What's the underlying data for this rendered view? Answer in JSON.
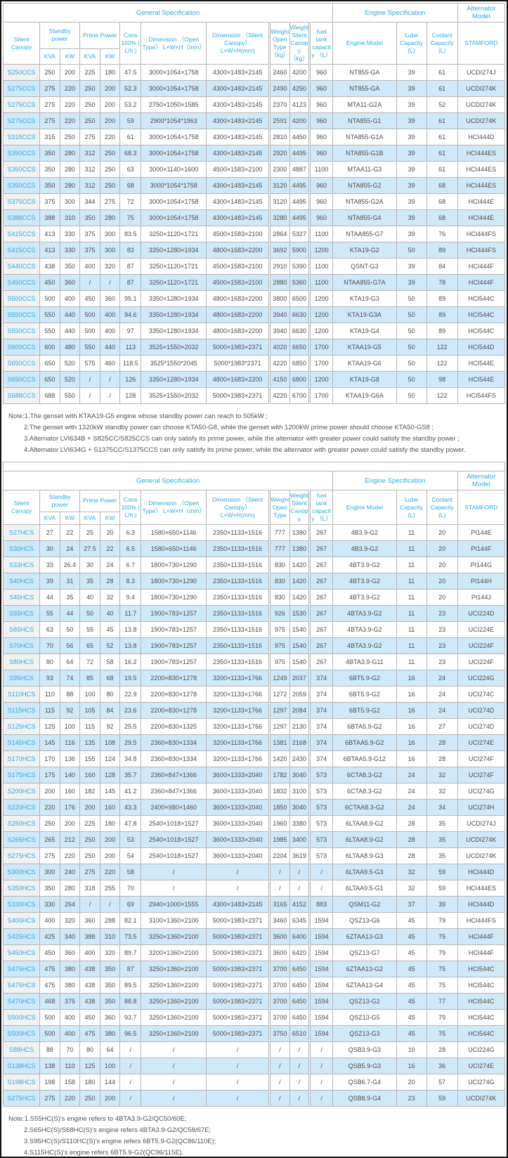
{
  "colors": {
    "header_text": "#29abe2",
    "row_alt_bg": "#cfe9f9",
    "label_bg": "#f2f2f2",
    "cell_text": "#4d4d4d",
    "border": "#b5b5b5"
  },
  "table1": {
    "group_headers": {
      "general": "General Specification",
      "engine": "Engine Specification",
      "alternator": "Alternator Model"
    },
    "columns": {
      "silent_canopy": "Silent Canopy",
      "standby_power": "Standby power",
      "prime_power": "Prime Power",
      "kva": "KVA",
      "kw": "KW",
      "kva2": "KVA",
      "kw2": "KW",
      "cons": "Cons 100% ( L/h )",
      "dim_open": "Dimension （Open Type） L×W×H（mm）",
      "dim_silent": "Dimension （Silent Canopy） L×W×H(mm)",
      "weight_open": "Weight Open Type （kg）",
      "weight_silent": "Weight Silent Canopy （kg）",
      "fuel": "fuel tank capacity （L）",
      "engine_model": "Engine Model",
      "lube": "Lube Capacity (L)",
      "coolant": "Coolant Capacity (L)",
      "stamford": "STAMFORD"
    },
    "rows": [
      [
        "S250CCS",
        "250",
        "200",
        "225",
        "180",
        "47.5",
        "3000×1054×1758",
        "4300×1483×2145",
        "2460",
        "4200",
        "960",
        "NT855-GA",
        "39",
        "61",
        "UCDI274J"
      ],
      [
        "S275CCS",
        "275",
        "220",
        "250",
        "200",
        "52.3",
        "3000×1054×1758",
        "4300×1483×2145",
        "2490",
        "4250",
        "960",
        "NT855-GA",
        "39",
        "61",
        "UCDI274K"
      ],
      [
        "S275CCS",
        "275",
        "220",
        "250",
        "200",
        "53.2",
        "2750×1050×1585",
        "4300×1483×2145",
        "2370",
        "4123",
        "960",
        "MTA11-G2A",
        "39",
        "52",
        "UCDI274K"
      ],
      [
        "S275CCS",
        "275",
        "220",
        "250",
        "200",
        "59",
        "2900*1054*1963",
        "4300×1483×2145",
        "2591",
        "4200",
        "960",
        "NTA855-G1",
        "39",
        "61",
        "UCDI274K"
      ],
      [
        "S315CCS",
        "315",
        "250",
        "275",
        "220",
        "61",
        "3000×1054×1758",
        "4300×1483×2145",
        "2810",
        "4450",
        "960",
        "NTA855-G1A",
        "39",
        "61",
        "HCI444D"
      ],
      [
        "S350CCS",
        "350",
        "280",
        "312",
        "250",
        "68.3",
        "3000×1054×1758",
        "4300×1483×2145",
        "2920",
        "4495",
        "960",
        "NTA855-G1B",
        "39",
        "61",
        "HCI444ES"
      ],
      [
        "S350CCS",
        "350",
        "280",
        "312",
        "250",
        "63",
        "3000×1140×1600",
        "4500×1583×2100",
        "2300",
        "4887",
        "1100",
        "MTAA11-G3",
        "39",
        "61",
        "HCI444ES"
      ],
      [
        "S350CCS",
        "350",
        "280",
        "312",
        "250",
        "68",
        "3000*1054*1758",
        "4300×1483×2145",
        "3120",
        "4495",
        "960",
        "NTA855-G2",
        "39",
        "68",
        "HCI444ES"
      ],
      [
        "S375CCS",
        "375",
        "300",
        "344",
        "275",
        "72",
        "3000×1054×1758",
        "4300×1483×2145",
        "3120",
        "4495",
        "960",
        "NTA855-G2A",
        "39",
        "68",
        "HCI444E"
      ],
      [
        "S388CCS",
        "388",
        "310",
        "350",
        "280",
        "75",
        "3000×1054×1758",
        "4300×1483×2145",
        "3280",
        "4495",
        "960",
        "NTA855-G4",
        "39",
        "68",
        "HCI444E"
      ],
      [
        "S415CCS",
        "413",
        "330",
        "375",
        "300",
        "83.5",
        "3250×1120×1721",
        "4500×1583×2100",
        "2864",
        "5327",
        "1100",
        "NTAA855-G7",
        "39",
        "76",
        "HCI444FS"
      ],
      [
        "S415CCS",
        "413",
        "330",
        "375",
        "300",
        "83",
        "3350×1280×1934",
        "4800×1683×2200",
        "3692",
        "5900",
        "1200",
        "KTA19-G2",
        "50",
        "89",
        "HCI444FS"
      ],
      [
        "S440CCS",
        "438",
        "350",
        "400",
        "320",
        "87",
        "3250×1120×1721",
        "4500×1583×2100",
        "2910",
        "5390",
        "1100",
        "QSNT-G3",
        "39",
        "84",
        "HCI444F"
      ],
      [
        "S450CCS",
        "450",
        "360",
        "/",
        "/",
        "87",
        "3250×1120×1721",
        "4500×1583×2100",
        "2880",
        "5360",
        "1100",
        "NTAA855-G7A",
        "39",
        "78",
        "HCI444F"
      ],
      [
        "S500CCS",
        "500",
        "400",
        "450",
        "360",
        "95.1",
        "3350×1280×1934",
        "4800×1683×2200",
        "3800",
        "6500",
        "1200",
        "KTA19-G3",
        "50",
        "89",
        "HCI544C"
      ],
      [
        "S550CCS",
        "550",
        "440",
        "500",
        "400",
        "94.6",
        "3350×1280×1934",
        "4800×1683×2200",
        "3940",
        "6630",
        "1200",
        "KTA19-G3A",
        "50",
        "89",
        "HCI544C"
      ],
      [
        "S550CCS",
        "550",
        "440",
        "500",
        "400",
        "97",
        "3350×1280×1934",
        "4800×1683×2200",
        "3940",
        "6630",
        "1200",
        "KTA19-G4",
        "50",
        "89",
        "HCI544C"
      ],
      [
        "S600CCS",
        "600",
        "480",
        "550",
        "440",
        "113",
        "3525×1550×2032",
        "5000×1983×2371",
        "4020",
        "6650",
        "1700",
        "KTAA19-G5",
        "50",
        "122",
        "HCI544D"
      ],
      [
        "S650CCS",
        "650",
        "520",
        "575",
        "460",
        "118.5",
        "3525*1550*2045",
        "5000*1983*2371",
        "4220",
        "6850",
        "1700",
        "KTAA19-G6",
        "50",
        "122",
        "HCI544E"
      ],
      [
        "S650CCS",
        "650",
        "520",
        "/",
        "/",
        "126",
        "3350×1280×1934",
        "4800×1683×2200",
        "4150",
        "6800",
        "1200",
        "KTA19-G8",
        "50",
        "98",
        "HCI544E"
      ],
      [
        "S688CCS",
        "688",
        "550",
        "/",
        "/",
        "128",
        "3525×1550×2032",
        "5000×1983×2371",
        "4220",
        "6700",
        "1700",
        "KTAA19-G6A",
        "50",
        "122",
        "HCI544FS"
      ]
    ],
    "notes": [
      "Note:1.The genset with KTAA19-G5 engine whose standby power can reach to 505kW ;",
      "2.The genset with 1320kW standby power can choose KTA50-G8, while the genset with 1200kW prime power should choose KTA50-GS8 ;",
      "3.Alternator LVI634B + S825CC/S825CCS can only satisfy its prime power, while the alternator with greater power could satisfy the standby power ;",
      "4.Alternator LVI634G + S1375CC/S1375CCS can only satisfy its prime power, while the alternator with greater power could satisfy the standby power."
    ]
  },
  "table2": {
    "group_headers": {
      "general": "General Specification",
      "engine": "Engine Specification",
      "alternator": "Alternator Model"
    },
    "columns": {
      "silent_canopy": "Silent Canopy",
      "standby_power": "Standby power",
      "prime_power": "Prime Power",
      "kva": "KVA",
      "kw": "KW",
      "kva2": "KVA",
      "kw2": "KW",
      "cons": "Cons 100% ( L/h )",
      "dim_open": "Dimension （Open Type） L×W×H（mm）",
      "dim_silent": "Dimension （Silent Canopy） L×W×H(mm)",
      "weight_open": "Weight Open Type",
      "weight_silent": "Weight Silent Canopy",
      "fuel": "fuel tank capacity （L）",
      "engine_model": "Engine Model",
      "lube": "Lube Capacity (L)",
      "coolant": "Coolant Capacity (L)",
      "stamford": "STAMFORD"
    },
    "rows": [
      [
        "S27HCS",
        "27",
        "22",
        "25",
        "20",
        "6.3",
        "1580×650×1146",
        "2350×1133×1516",
        "777",
        "1380",
        "267",
        "4B3.9-G2",
        "11",
        "20",
        "PI144E"
      ],
      [
        "S30HCS",
        "30",
        "24",
        "27.5",
        "22",
        "6.5",
        "1580×650×1146",
        "2350×1133×1516",
        "777",
        "1380",
        "267",
        "4B3.9-G2",
        "11",
        "20",
        "PI144F"
      ],
      [
        "S33HCS",
        "33",
        "26.4",
        "30",
        "24",
        "6.7",
        "1800×730×1290",
        "2350×1133×1516",
        "830",
        "1420",
        "267",
        "4BT3.9-G2",
        "11",
        "20",
        "PI144G"
      ],
      [
        "S40HCS",
        "39",
        "31",
        "35",
        "28",
        "8.3",
        "1800×730×1290",
        "2350×1133×1516",
        "830",
        "1420",
        "267",
        "4BT3.9-G2",
        "11",
        "20",
        "PI144H"
      ],
      [
        "S45HCS",
        "44",
        "35",
        "40",
        "32",
        "9.4",
        "1800×730×1290",
        "2350×1133×1516",
        "830",
        "1420",
        "267",
        "4BT3.9-G2",
        "11",
        "20",
        "PI144J"
      ],
      [
        "S55HCS",
        "55",
        "44",
        "50",
        "40",
        "11.7",
        "1900×783×1257",
        "2350×1133×1516",
        "926",
        "1530",
        "267",
        "4BTA3.9-G2",
        "11",
        "23",
        "UCI224D"
      ],
      [
        "S65HCS",
        "63",
        "50",
        "55",
        "45",
        "13.8",
        "1900×783×1257",
        "2350×1133×1516",
        "975",
        "1540",
        "267",
        "4BTA3.9-G2",
        "11",
        "23",
        "UCI224E"
      ],
      [
        "S70HCS",
        "70",
        "56",
        "65",
        "52",
        "13.8",
        "1900×783×1257",
        "2350×1133×1516",
        "975",
        "1540",
        "267",
        "4BTA3.9-G2",
        "11",
        "23",
        "UCI224F"
      ],
      [
        "S80HCS",
        "80",
        "64",
        "72",
        "58",
        "16.2",
        "1900×783×1257",
        "2350×1133×1516",
        "975",
        "1540",
        "267",
        "4BTA3.9-G11",
        "11",
        "23",
        "UCI224F"
      ],
      [
        "S95HCS",
        "93",
        "74",
        "85",
        "68",
        "19.5",
        "2200×830×1278",
        "3200×1133×1766",
        "1249",
        "2037",
        "374",
        "6BT5.9-G2",
        "16",
        "24",
        "UCI224G"
      ],
      [
        "S110HCS",
        "110",
        "88",
        "100",
        "80",
        "22.9",
        "2200×830×1278",
        "3200×1133×1766",
        "1272",
        "2059",
        "374",
        "6BT5.9-G2",
        "16",
        "24",
        "UCI274C"
      ],
      [
        "S115HCS",
        "115",
        "92",
        "105",
        "84",
        "23.6",
        "2200×830×1278",
        "3200×1133×1766",
        "1297",
        "2084",
        "374",
        "6BT5.9-G2",
        "16",
        "24",
        "UCI274D"
      ],
      [
        "S125HCS",
        "125",
        "100",
        "115",
        "92",
        "25.5",
        "2200×830×1325",
        "3200×1133×1766",
        "1297",
        "2130",
        "374",
        "6BTA5.9-G2",
        "16",
        "27",
        "UCI274D"
      ],
      [
        "S145HCS",
        "145",
        "116",
        "135",
        "108",
        "29.5",
        "2360×830×1334",
        "3200×1133×1766",
        "1381",
        "2168",
        "374",
        "6BTAA5.9-G2",
        "16",
        "28",
        "UCI274E"
      ],
      [
        "S170HCS",
        "170",
        "136",
        "155",
        "124",
        "34.8",
        "2360×830×1334",
        "3200×1133×1766",
        "1420",
        "2430",
        "374",
        "6BTAA5.9-G12",
        "16",
        "28",
        "UCI274F"
      ],
      [
        "S175HCS",
        "175",
        "140",
        "160",
        "128",
        "35.7",
        "2360×847×1366",
        "3600×1333×2040",
        "1782",
        "3040",
        "573",
        "6CTA8.3-G2",
        "24",
        "32",
        "UCI274F"
      ],
      [
        "S200HCS",
        "200",
        "160",
        "182",
        "145",
        "41.2",
        "2360×847×1366",
        "3600×1333×2040",
        "1832",
        "3100",
        "573",
        "6CTA8.3-G2",
        "24",
        "32",
        "UCI274G"
      ],
      [
        "S220HCS",
        "220",
        "176",
        "200",
        "160",
        "43.3",
        "2400×980×1460",
        "3600×1333×2040",
        "1850",
        "3040",
        "573",
        "6CTAA8.3-G2",
        "24",
        "34",
        "UCI274H"
      ],
      [
        "S250HCS",
        "250",
        "200",
        "225",
        "180",
        "47.8",
        "2540×1018×1527",
        "3600×1333×2040",
        "1960",
        "3380",
        "573",
        "6LTAA8.9-G2",
        "28",
        "35",
        "UCDI274J"
      ],
      [
        "S265HCS",
        "265",
        "212",
        "250",
        "200",
        "53",
        "2540×1018×1527",
        "3600×1333×2040",
        "1985",
        "3400",
        "573",
        "6LTAA8.9-G2",
        "28",
        "35",
        "UCDI274K"
      ],
      [
        "S275HCS",
        "275",
        "220",
        "250",
        "200",
        "54",
        "2540×1018×1527",
        "3600×1333×2040",
        "2204",
        "3619",
        "573",
        "6LTAA8.9-G3",
        "28",
        "35",
        "UCDI274K"
      ],
      [
        "S300HCS",
        "300",
        "240",
        "275",
        "220",
        "58",
        "/",
        "/",
        "/",
        "/",
        "/",
        "6LTAA9.5-G3",
        "32",
        "59",
        "HCI444D"
      ],
      [
        "S350HCS",
        "350",
        "280",
        "318",
        "255",
        "70",
        "/",
        "/",
        "/",
        "/",
        "/",
        "6LTAA9.5-G1",
        "32",
        "59",
        "HCI444ES"
      ],
      [
        "S330HCS",
        "330",
        "264",
        "/",
        "/",
        "69",
        "2940×1000×1555",
        "4300×1483×2145",
        "3165",
        "4152",
        "883",
        "QSM11-G2",
        "37",
        "39",
        "HCI444D"
      ],
      [
        "S400HCS",
        "400",
        "320",
        "360",
        "288",
        "82.1",
        "3100×1360×2100",
        "5000×1983×2371",
        "3460",
        "6345",
        "1594",
        "QSZ13-G6",
        "45",
        "79",
        "HCI444FS"
      ],
      [
        "S425HCS",
        "425",
        "340",
        "388",
        "310",
        "73.5",
        "3250×1360×2100",
        "5000×1983×2371",
        "3600",
        "6400",
        "1594",
        "6ZTAA13-G3",
        "45",
        "75",
        "HCI444F"
      ],
      [
        "S450HCS",
        "450",
        "360",
        "400",
        "320",
        "89.7",
        "3200×1360×2100",
        "5000×1983×2371",
        "3600",
        "6420",
        "1594",
        "QSZ13-G7",
        "45",
        "79",
        "HCI444F"
      ],
      [
        "S475HCS",
        "475",
        "380",
        "438",
        "350",
        "87",
        "3250×1360×2100",
        "5000×1983×2371",
        "3700",
        "6450",
        "1594",
        "6ZTAA13-G2",
        "45",
        "75",
        "HCI544C"
      ],
      [
        "S475HCS",
        "475",
        "380",
        "438",
        "350",
        "89.5",
        "3250×1360×2100",
        "5000×1983×2371",
        "3700",
        "6450",
        "1594",
        "6ZTAA13-G4",
        "45",
        "75",
        "HCI544C"
      ],
      [
        "S470HCS",
        "468",
        "375",
        "438",
        "350",
        "88.8",
        "3250×1360×2100",
        "5000×1983×2371",
        "3700",
        "6450",
        "1594",
        "QSZ13-G2",
        "45",
        "77",
        "HCI544C"
      ],
      [
        "S500HCS",
        "500",
        "400",
        "450",
        "360",
        "93.7",
        "3250×1360×2100",
        "5000×1983×2371",
        "3700",
        "6450",
        "1594",
        "QSZ13-G5",
        "45",
        "79",
        "HCI544C"
      ],
      [
        "S500HCS",
        "500",
        "400",
        "475",
        "380",
        "96.5",
        "3250×1360×2100",
        "5000×1983×2371",
        "3750",
        "6510",
        "1594",
        "QSZ13-G3",
        "45",
        "75",
        "HCI544C"
      ],
      [
        "S88HCS",
        "88",
        "70",
        "80",
        "64",
        "/",
        "/",
        "/",
        "/",
        "/",
        "/",
        "QSB3.9-G3",
        "10",
        "28",
        "UCI224G"
      ],
      [
        "S138HCS",
        "138",
        "110",
        "125",
        "100",
        "/",
        "/",
        "/",
        "/",
        "/",
        "/",
        "QSB5.9-G3",
        "16",
        "36",
        "UCI274E"
      ],
      [
        "S198HCS",
        "198",
        "158",
        "180",
        "144",
        "/",
        "/",
        "/",
        "/",
        "/",
        "/",
        "QSB6.7-G4",
        "20",
        "57",
        "UCI274G"
      ],
      [
        "S275HCS",
        "275",
        "220",
        "250",
        "200",
        "/",
        "/",
        "/",
        "/",
        "/",
        "/",
        "QSB8.9-G4",
        "23",
        "59",
        "UCDI274K"
      ]
    ],
    "notes": [
      "Note:1.S55HC(S)'s engine refers to 4BTA3.9-G2/QC50/60E;",
      "2.S65HC(S)/S68HC(S)'s engine refers 4BTA3.9-G2/QC58/67E;",
      "3.S95HC(S)/S110HC(S)'s engine refers 6BT5.9-G2(QC86/110E);",
      "4.S115HC(S)'s engine refers 6BT5.9-G2(QC96/115E)."
    ]
  }
}
